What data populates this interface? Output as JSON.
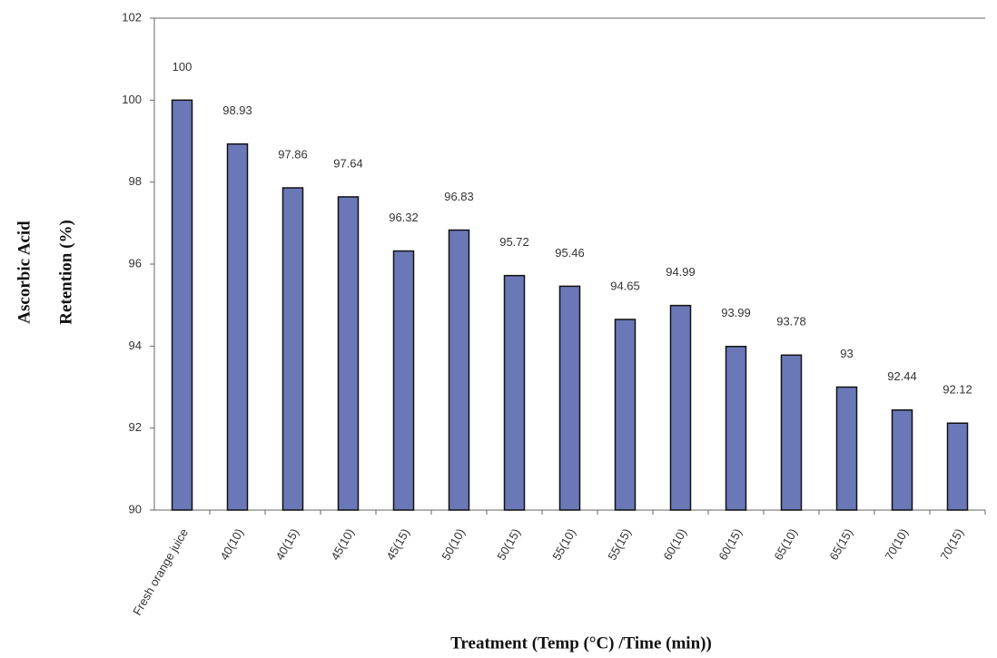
{
  "chart_data": {
    "type": "bar",
    "y_label": [
      "Ascorbic Acid",
      "Retention (%)"
    ],
    "x_label": "Treatment (Temp (°C) /Time (min))",
    "categories": [
      "Fresh orange juice",
      "40(10)",
      "40(15)",
      "45(10)",
      "45(15)",
      "50(10)",
      "50(15)",
      "55(10)",
      "55(15)",
      "60(10)",
      "60(15)",
      "65(10)",
      "65(15)",
      "70(10)",
      "70(15)"
    ],
    "values": [
      100,
      98.93,
      97.86,
      97.64,
      96.32,
      96.83,
      95.72,
      95.46,
      94.65,
      94.99,
      93.99,
      93.78,
      93,
      92.44,
      92.12
    ],
    "color": "#6a78b8",
    "ylim": [
      90,
      102
    ],
    "yticks": [
      90,
      92,
      94,
      96,
      98,
      100,
      102
    ],
    "grid": false
  }
}
